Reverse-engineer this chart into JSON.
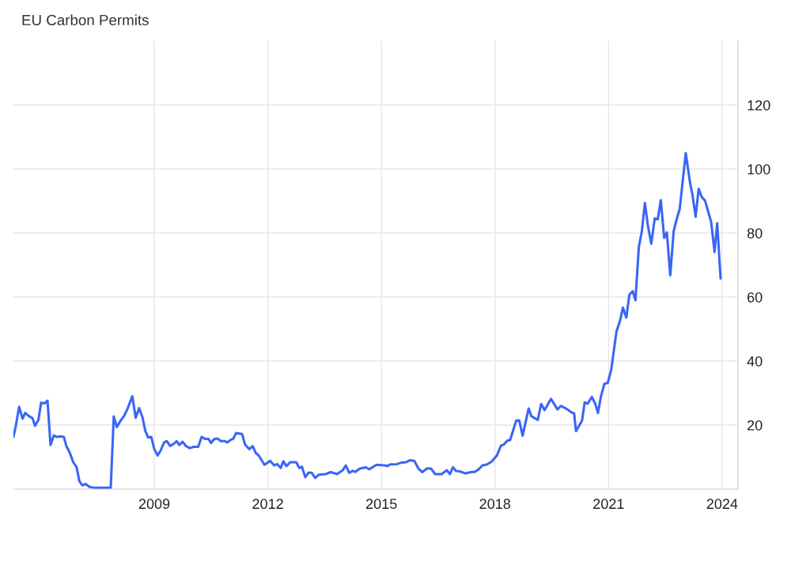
{
  "chart_data": {
    "type": "line",
    "title": "EU Carbon Permits",
    "x": [
      2005.28,
      2005.34,
      2005.43,
      2005.52,
      2005.59,
      2005.69,
      2005.78,
      2005.85,
      2005.94,
      2006.01,
      2006.1,
      2006.18,
      2006.26,
      2006.35,
      2006.42,
      2006.53,
      2006.61,
      2006.68,
      2006.77,
      2006.86,
      2006.95,
      2007.02,
      2007.1,
      2007.19,
      2007.29,
      2007.43,
      2007.85,
      2007.93,
      2008.01,
      2008.1,
      2008.2,
      2008.3,
      2008.42,
      2008.51,
      2008.6,
      2008.69,
      2008.76,
      2008.84,
      2008.92,
      2009.0,
      2009.09,
      2009.17,
      2009.26,
      2009.33,
      2009.42,
      2009.52,
      2009.59,
      2009.66,
      2009.75,
      2009.84,
      2009.94,
      2010.04,
      2010.16,
      2010.25,
      2010.34,
      2010.43,
      2010.5,
      2010.58,
      2010.67,
      2010.76,
      2010.86,
      2010.93,
      2011.02,
      2011.09,
      2011.16,
      2011.32,
      2011.4,
      2011.51,
      2011.6,
      2011.68,
      2011.76,
      2011.91,
      2012.06,
      2012.17,
      2012.25,
      2012.34,
      2012.41,
      2012.49,
      2012.59,
      2012.75,
      2012.83,
      2012.9,
      2012.99,
      2013.07,
      2013.16,
      2013.25,
      2013.35,
      2013.53,
      2013.66,
      2013.83,
      2013.98,
      2014.06,
      2014.15,
      2014.24,
      2014.31,
      2014.43,
      2014.59,
      2014.68,
      2014.87,
      2015.09,
      2015.16,
      2015.23,
      2015.41,
      2015.54,
      2015.65,
      2015.75,
      2015.87,
      2015.98,
      2016.08,
      2016.21,
      2016.31,
      2016.42,
      2016.59,
      2016.73,
      2016.81,
      2016.89,
      2016.97,
      2017.08,
      2017.22,
      2017.36,
      2017.47,
      2017.56,
      2017.67,
      2017.79,
      2017.91,
      2018.05,
      2018.16,
      2018.23,
      2018.33,
      2018.4,
      2018.56,
      2018.64,
      2018.73,
      2018.89,
      2018.96,
      2019.13,
      2019.22,
      2019.31,
      2019.48,
      2019.65,
      2019.74,
      2019.86,
      2020.04,
      2020.09,
      2020.14,
      2020.3,
      2020.37,
      2020.45,
      2020.56,
      2020.65,
      2020.72,
      2020.8,
      2020.89,
      2020.98,
      2021.07,
      2021.21,
      2021.3,
      2021.38,
      2021.47,
      2021.55,
      2021.64,
      2021.71,
      2021.8,
      2021.88,
      2021.96,
      2022.04,
      2022.13,
      2022.22,
      2022.3,
      2022.38,
      2022.47,
      2022.54,
      2022.63,
      2022.72,
      2022.79,
      2022.88,
      2023.04,
      2023.15,
      2023.22,
      2023.3,
      2023.38,
      2023.46,
      2023.55,
      2023.71,
      2023.8,
      2023.87,
      2023.96
    ],
    "series": [
      {
        "color": "#3a66f5",
        "values": [
          16.3,
          19.6,
          25.7,
          22.0,
          23.8,
          22.8,
          22.2,
          19.8,
          21.6,
          27.0,
          26.8,
          27.6,
          13.8,
          16.8,
          16.3,
          16.5,
          16.3,
          13.4,
          11.3,
          8.4,
          6.8,
          2.5,
          1.2,
          1.6,
          0.7,
          0.4,
          0.4,
          22.7,
          19.4,
          21.2,
          22.8,
          25.3,
          29.0,
          22.3,
          25.3,
          22.4,
          18.3,
          16.1,
          16.3,
          12.5,
          10.5,
          12.1,
          14.6,
          15.0,
          13.5,
          14.2,
          15.0,
          13.8,
          14.8,
          13.4,
          12.8,
          13.2,
          13.2,
          16.3,
          15.7,
          15.7,
          14.4,
          15.6,
          15.8,
          15.0,
          15.0,
          14.6,
          15.4,
          15.8,
          17.5,
          17.2,
          13.9,
          12.5,
          13.4,
          11.3,
          10.5,
          7.6,
          8.8,
          7.4,
          7.8,
          6.6,
          8.7,
          7.2,
          8.4,
          8.4,
          6.6,
          7.0,
          3.7,
          5.1,
          5.1,
          3.5,
          4.5,
          4.7,
          5.3,
          4.7,
          5.9,
          7.4,
          5.1,
          5.7,
          5.4,
          6.4,
          6.8,
          6.2,
          7.6,
          7.4,
          7.2,
          7.7,
          7.8,
          8.3,
          8.4,
          9.0,
          8.8,
          6.4,
          5.3,
          6.5,
          6.4,
          4.7,
          4.7,
          5.9,
          4.7,
          6.8,
          5.7,
          5.5,
          4.9,
          5.3,
          5.4,
          6.1,
          7.4,
          7.7,
          8.6,
          10.5,
          13.6,
          13.9,
          15.2,
          15.3,
          21.4,
          21.5,
          16.7,
          25.2,
          22.8,
          21.6,
          26.6,
          24.7,
          28.2,
          24.9,
          26.0,
          25.3,
          23.8,
          23.7,
          18.1,
          21.4,
          27.1,
          26.7,
          28.8,
          26.6,
          23.8,
          29.0,
          32.9,
          33.2,
          37.3,
          49.3,
          52.5,
          56.7,
          53.6,
          60.8,
          61.8,
          59.0,
          75.6,
          80.6,
          89.4,
          82.3,
          76.7,
          84.6,
          84.3,
          90.3,
          78.5,
          80.2,
          66.8,
          80.6,
          83.9,
          87.6,
          105.0,
          95.9,
          91.7,
          85.1,
          93.8,
          91.3,
          90.1,
          83.5,
          74.1,
          83.1,
          65.8
        ]
      }
    ],
    "xlim": [
      2005.28,
      2024.42
    ],
    "xticks": [
      2009,
      2012,
      2015,
      2018,
      2021,
      2024
    ],
    "ylim": [
      0,
      140
    ],
    "yticks": [
      20,
      40,
      60,
      80,
      100,
      120
    ],
    "grid": true,
    "marker": "none",
    "line_style": "solid"
  }
}
